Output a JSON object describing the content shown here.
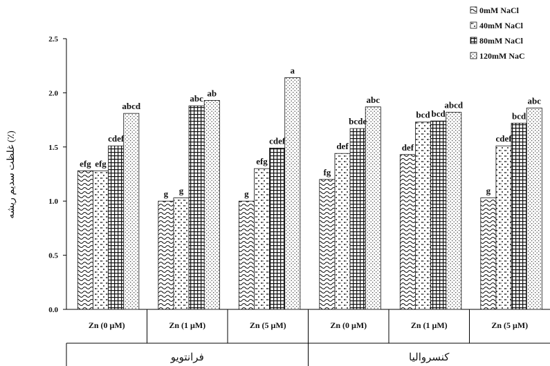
{
  "chart_data": {
    "type": "bar",
    "ylabel": "غلظت سدیم ریشه (٪)",
    "ylim": [
      0.0,
      2.5
    ],
    "yticks": [
      "0.0",
      "0.5",
      "1.0",
      "1.5",
      "2.0",
      "2.5"
    ],
    "grid": false,
    "legend_position": "top-right",
    "categories": [
      "Zn (0 μM)",
      "Zn (1 μM)",
      "Zn (5 μM)",
      "Zn (0 μM)",
      "Zn (1 μM)",
      "Zn (5 μM)"
    ],
    "groups": [
      {
        "label": "فرانتویو",
        "span": [
          0,
          2
        ]
      },
      {
        "label": "کنسروالیا",
        "span": [
          3,
          5
        ]
      }
    ],
    "series": [
      {
        "name": "0mM NaCl",
        "pattern": "wave",
        "values": [
          1.28,
          1.0,
          1.0,
          1.2,
          1.43,
          1.03
        ],
        "labels": [
          "efg",
          "g",
          "g",
          "fg",
          "def",
          "g"
        ]
      },
      {
        "name": "40mM NaCl",
        "pattern": "diamond-dots",
        "values": [
          1.28,
          1.03,
          1.3,
          1.44,
          1.73,
          1.51
        ],
        "labels": [
          "efg",
          "g",
          "efg",
          "def",
          "bcd",
          "cdef"
        ]
      },
      {
        "name": "80mM NaCl",
        "pattern": "grid",
        "values": [
          1.51,
          1.88,
          1.49,
          1.67,
          1.74,
          1.72
        ],
        "labels": [
          "cdef",
          "abc",
          "cdef",
          "bcde",
          "bcd",
          "bcd"
        ]
      },
      {
        "name": "120mM NaC",
        "pattern": "fine-dots",
        "values": [
          1.81,
          1.93,
          2.14,
          1.87,
          1.82,
          1.86
        ],
        "labels": [
          "abcd",
          "ab",
          "a",
          "abc",
          "abcd",
          "abc"
        ]
      }
    ]
  }
}
